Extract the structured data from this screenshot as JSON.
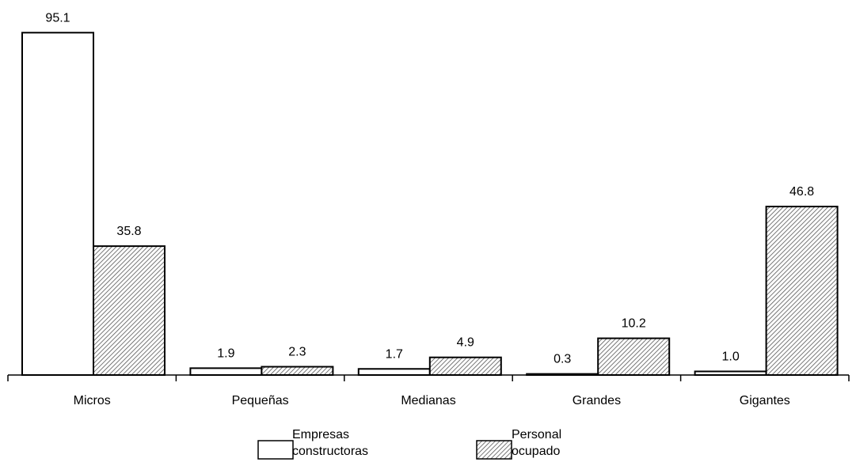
{
  "chart_data": {
    "type": "bar",
    "categories": [
      "Micros",
      "Pequeñas",
      "Medianas",
      "Grandes",
      "Gigantes"
    ],
    "series": [
      {
        "name": "Empresas\nconstructoras",
        "values": [
          95.1,
          1.9,
          1.7,
          0.3,
          1.0
        ],
        "fill": "#ffffff",
        "pattern": "none"
      },
      {
        "name": "Personal\nocupado",
        "values": [
          35.8,
          2.3,
          4.9,
          10.2,
          46.8
        ],
        "fill": "#ffffff",
        "pattern": "diagonal-hatch"
      }
    ],
    "data_labels": [
      [
        "95.1",
        "1.9",
        "1.7",
        "0.3",
        "1.0"
      ],
      [
        "35.8",
        "2.3",
        "4.9",
        "10.2",
        "46.8"
      ]
    ],
    "ylim": [
      0,
      100
    ],
    "grid": false,
    "legend_position": "bottom-center",
    "title": "",
    "xlabel": "",
    "ylabel": ""
  }
}
